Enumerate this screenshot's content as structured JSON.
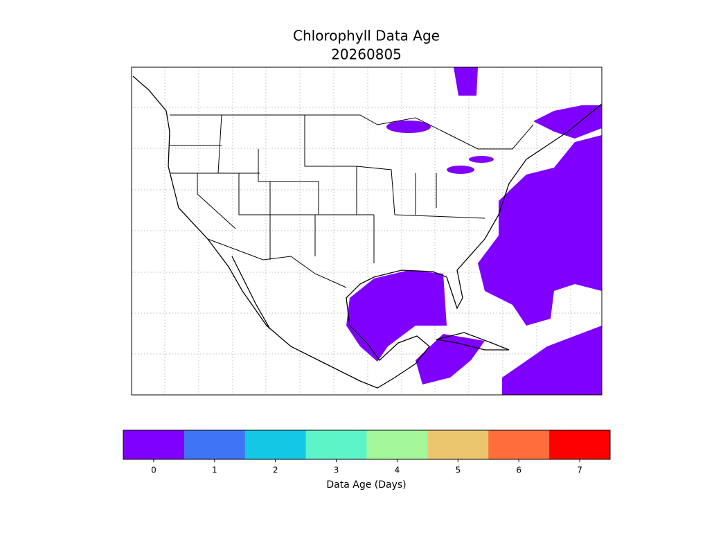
{
  "chart_data": {
    "type": "map",
    "title": "Chlorophyll Data Age",
    "subtitle": "20260805",
    "colorbar": {
      "label": "Data Age (Days)",
      "lim": [
        -0.5,
        7.5
      ],
      "ticks": [
        0,
        1,
        2,
        3,
        4,
        5,
        6,
        7
      ],
      "colors": [
        "#7f00ff",
        "#3f74f7",
        "#12c8e5",
        "#5cf5c8",
        "#a4f89a",
        "#ecc66e",
        "#ff6e3c",
        "#ff0000"
      ]
    }
  }
}
